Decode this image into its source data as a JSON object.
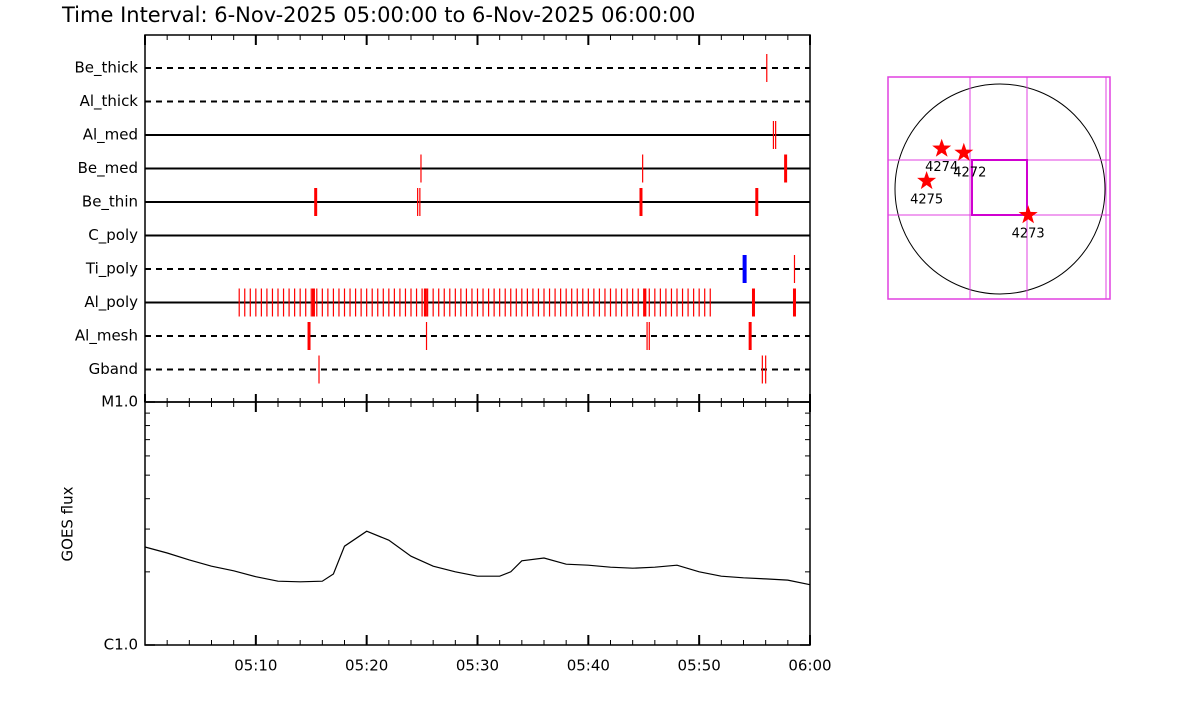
{
  "chart_data": [
    {
      "type": "timeline",
      "title": "Time Interval:  6-Nov-2025 05:00:00 to  6-Nov-2025 06:00:00",
      "xlim": [
        0,
        60
      ],
      "xticks": [
        0,
        10,
        20,
        30,
        40,
        50,
        60
      ],
      "xminor": [
        2,
        4,
        6,
        8,
        12,
        14,
        16,
        18,
        22,
        24,
        26,
        28,
        32,
        34,
        36,
        38,
        42,
        44,
        46,
        48,
        52,
        54,
        56,
        58
      ],
      "color": "#ff0000",
      "highlight_color": "#0000ff",
      "rows": [
        {
          "name": "Be_thick",
          "line": "dashed",
          "events": [
            56.1
          ],
          "strong": [],
          "highlight": []
        },
        {
          "name": "Al_thick",
          "line": "dashed",
          "events": [],
          "strong": [],
          "highlight": []
        },
        {
          "name": "Al_med",
          "line": "solid",
          "events": [
            56.7,
            56.9
          ],
          "strong": [],
          "highlight": []
        },
        {
          "name": "Be_med",
          "line": "solid",
          "events": [
            24.9,
            44.9
          ],
          "strong": [
            57.8
          ],
          "highlight": []
        },
        {
          "name": "Be_thin",
          "line": "solid",
          "events": [
            24.6,
            24.8
          ],
          "strong": [
            15.4,
            44.75,
            55.2
          ],
          "highlight": []
        },
        {
          "name": "C_poly",
          "line": "solid",
          "events": [],
          "strong": [],
          "highlight": []
        },
        {
          "name": "Ti_poly",
          "line": "dashed",
          "events": [
            58.6
          ],
          "strong": [],
          "highlight": [
            54.1
          ]
        },
        {
          "name": "Al_poly",
          "line": "solid",
          "events": [
            8.5,
            9,
            9.5,
            10,
            10.5,
            11,
            11.5,
            12,
            12.5,
            13,
            13.5,
            14,
            14.5,
            15,
            15.5,
            16,
            16.5,
            17,
            17.5,
            18,
            18.5,
            19,
            19.5,
            20,
            20.5,
            21,
            21.5,
            22,
            22.5,
            23,
            23.5,
            24,
            24.5,
            25,
            25.5,
            26,
            26.5,
            27,
            27.5,
            28,
            28.5,
            29,
            29.5,
            30,
            30.5,
            31,
            31.5,
            32,
            32.5,
            33,
            33.5,
            34,
            34.5,
            35,
            35.5,
            36,
            36.5,
            37,
            37.5,
            38,
            38.5,
            39,
            39.5,
            40,
            40.5,
            41,
            41.5,
            42,
            42.5,
            43,
            43.5,
            44,
            44.5,
            45,
            45.5,
            46,
            46.5,
            47,
            47.5,
            48,
            48.5,
            49,
            49.5,
            50,
            50.5,
            51
          ],
          "strong": [
            15.2,
            25.3,
            45.1,
            54.9,
            58.6
          ],
          "highlight": []
        },
        {
          "name": "Al_mesh",
          "line": "dashed",
          "events": [
            25.4,
            45.3,
            45.5
          ],
          "strong": [
            14.8,
            54.6
          ],
          "highlight": []
        },
        {
          "name": "Gband",
          "line": "dashed",
          "events": [
            15.7,
            55.7,
            56.0
          ],
          "strong": [],
          "highlight": []
        }
      ]
    },
    {
      "type": "line",
      "ylabel": "GOES flux",
      "log": true,
      "color": "#000000",
      "x": [
        0,
        2,
        4,
        6,
        8,
        10,
        12,
        14,
        16,
        17,
        18,
        20,
        22,
        24,
        26,
        28,
        30,
        32,
        33,
        34,
        36,
        38,
        40,
        42,
        44,
        46,
        48,
        50,
        52,
        54,
        56,
        58,
        60
      ],
      "values": [
        2.53e-06,
        2.39e-06,
        2.24e-06,
        2.11e-06,
        2.02e-06,
        1.91e-06,
        1.83e-06,
        1.82e-06,
        1.83e-06,
        1.96e-06,
        2.55e-06,
        2.94e-06,
        2.7e-06,
        2.32e-06,
        2.11e-06,
        2e-06,
        1.92e-06,
        1.92e-06,
        2e-06,
        2.22e-06,
        2.28e-06,
        2.15e-06,
        2.13e-06,
        2.09e-06,
        2.07e-06,
        2.09e-06,
        2.13e-06,
        2e-06,
        1.92e-06,
        1.89e-06,
        1.87e-06,
        1.85e-06,
        1.77e-06
      ],
      "xlim": [
        0,
        60
      ],
      "xticks": [
        {
          "value": 10,
          "label": "05:10"
        },
        {
          "value": 20,
          "label": "05:20"
        },
        {
          "value": 30,
          "label": "05:30"
        },
        {
          "value": 40,
          "label": "05:40"
        },
        {
          "value": 50,
          "label": "05:50"
        },
        {
          "value": 60,
          "label": "06:00"
        }
      ],
      "xminor": [
        2,
        4,
        6,
        8,
        12,
        14,
        16,
        18,
        22,
        24,
        26,
        28,
        32,
        34,
        36,
        38,
        42,
        44,
        46,
        48,
        52,
        54,
        56,
        58
      ],
      "ylim": [
        1e-06,
        1e-05
      ],
      "yticks": [
        {
          "value": 1e-06,
          "label": "C1.0"
        },
        {
          "value": 1e-05,
          "label": "M1.0"
        }
      ],
      "yminor": [
        2e-06,
        3e-06,
        4e-06,
        5e-06,
        6e-06,
        7e-06,
        8e-06,
        9e-06
      ]
    },
    {
      "type": "scatter",
      "color": "#ff0000",
      "xlim": [
        -1000,
        1000
      ],
      "ylim": [
        -1000,
        1000
      ],
      "labels": [
        "4274",
        "4272",
        "4275",
        "4273"
      ],
      "x": [
        -530,
        -329,
        -667,
        256
      ],
      "y": [
        366,
        329,
        73,
        -238
      ]
    }
  ]
}
